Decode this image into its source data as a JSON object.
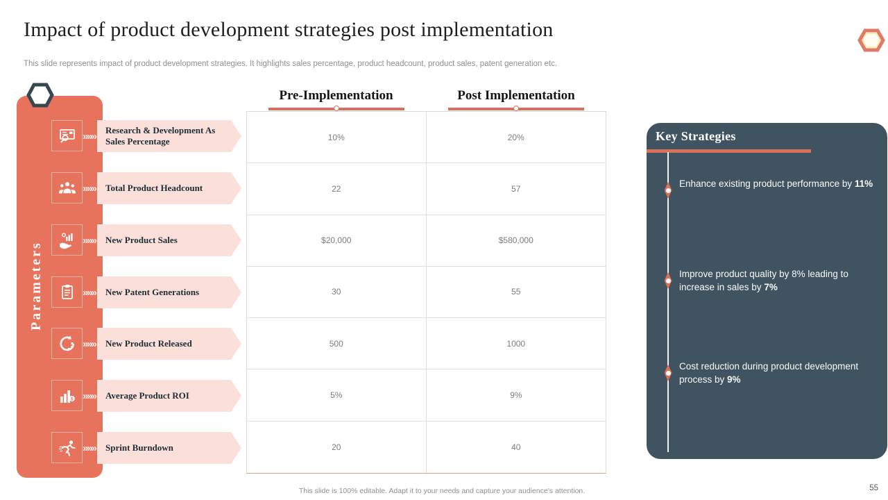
{
  "slide": {
    "title": "Impact of product development strategies post implementation",
    "subtitle": "This slide represents impact of product development strategies. It highlights sales percentage, product headcount, product sales, patent generation etc.",
    "footer": "This slide is 100% editable. Adapt it to your needs and capture your audience's attention.",
    "page_number": "55"
  },
  "sidebar": {
    "label": "Parameters",
    "chevrons": "»»»"
  },
  "parameters": [
    {
      "label": "Research & Development As Sales Percentage",
      "icon": "research-magnifier-icon"
    },
    {
      "label": "Total Product Headcount",
      "icon": "people-group-icon"
    },
    {
      "label": "New Product Sales",
      "icon": "hand-coins-chart-icon"
    },
    {
      "label": "New Patent Generations",
      "icon": "clipboard-icon"
    },
    {
      "label": "New Product Released",
      "icon": "gear-arrow-icon"
    },
    {
      "label": "Average Product ROI",
      "icon": "bar-chart-dollar-icon"
    },
    {
      "label": "Sprint Burndown",
      "icon": "runner-icon"
    }
  ],
  "table": {
    "columns": [
      "Pre-Implementation",
      "Post Implementation"
    ],
    "rows": [
      [
        "10%",
        "20%"
      ],
      [
        "22",
        "57"
      ],
      [
        "$20,000",
        "$580,000"
      ],
      [
        "30",
        "55"
      ],
      [
        "500",
        "1000"
      ],
      [
        "5%",
        "9%"
      ],
      [
        "20",
        "40"
      ]
    ]
  },
  "key_strategies": {
    "title": "Key Strategies",
    "items": [
      {
        "text": "Enhance existing product performance by ",
        "bold": "11%"
      },
      {
        "text": "Improve product quality by 8% leading to increase in sales by ",
        "bold": "7%"
      },
      {
        "text": "Cost reduction during product development process by ",
        "bold": "9%"
      }
    ]
  },
  "colors": {
    "accent_coral": "#E8735C",
    "underline_coral": "#D9705A",
    "banner_pink": "#FBE0DA",
    "panel_slate": "#3F5460",
    "hexagon_dark": "#36474F"
  }
}
